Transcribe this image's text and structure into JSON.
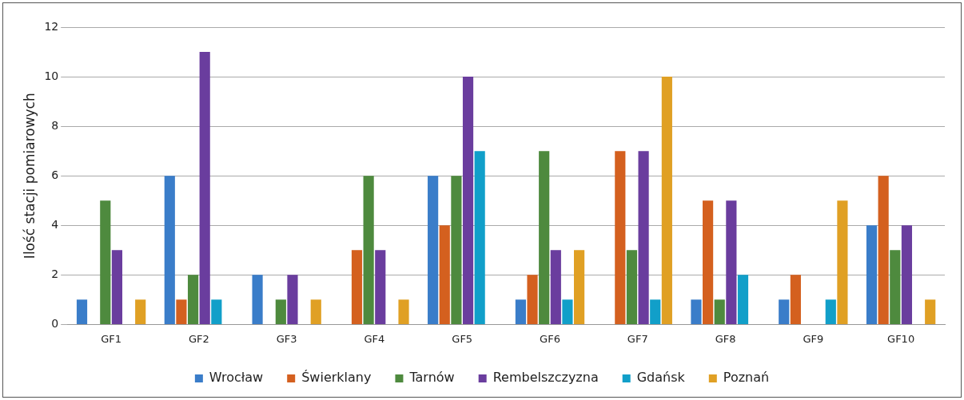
{
  "chart_data": {
    "type": "bar",
    "ylabel": "Ilość stacji pomiarowych",
    "categories": [
      "GF1",
      "GF2",
      "GF3",
      "GF4",
      "GF5",
      "GF6",
      "GF7",
      "GF8",
      "GF9",
      "GF10"
    ],
    "series": [
      {
        "name": "Wrocław",
        "color": "#3a7dc9",
        "values": [
          1,
          6,
          2,
          0,
          6,
          1,
          0,
          1,
          1,
          4
        ]
      },
      {
        "name": "Świerklany",
        "color": "#d4601f",
        "values": [
          0,
          1,
          0,
          3,
          4,
          2,
          7,
          5,
          2,
          6
        ]
      },
      {
        "name": "Tarnów",
        "color": "#4e8a3e",
        "values": [
          5,
          2,
          1,
          6,
          6,
          7,
          3,
          1,
          0,
          3
        ]
      },
      {
        "name": "Rembelszczyzna",
        "color": "#6a3d9e",
        "values": [
          3,
          11,
          2,
          3,
          10,
          3,
          7,
          5,
          0,
          4
        ]
      },
      {
        "name": "Gdańsk",
        "color": "#119fc9",
        "values": [
          0,
          1,
          0,
          0,
          7,
          1,
          1,
          2,
          1,
          0
        ]
      },
      {
        "name": "Poznań",
        "color": "#e0a024",
        "values": [
          1,
          0,
          1,
          1,
          0,
          3,
          10,
          0,
          5,
          1
        ]
      }
    ],
    "ylim": [
      0,
      12
    ],
    "yticks": [
      0,
      2,
      4,
      6,
      8,
      10,
      12
    ],
    "grid": "y",
    "legend": "bottom"
  }
}
